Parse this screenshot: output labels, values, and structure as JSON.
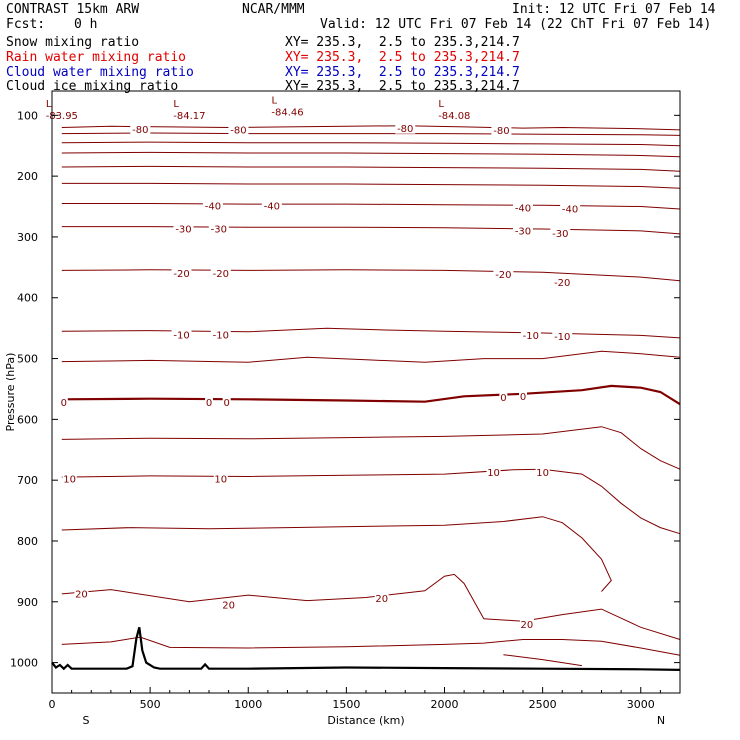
{
  "header": {
    "model": "CONTRAST 15km ARW",
    "org": "NCAR/MMM",
    "init": "Init: 12 UTC Fri 07 Feb 14",
    "fcst_label": "Fcst:",
    "fcst_value": "0 h",
    "valid": "Valid: 12 UTC Fri 07 Feb 14 (22 ChT Fri 07 Feb 14)"
  },
  "fields": [
    {
      "name": "Snow mixing ratio",
      "xy": "XY= 235.3,  2.5 to 235.3,214.7",
      "color": "#000000"
    },
    {
      "name": "Rain water mixing ratio",
      "xy": "XY= 235.3,  2.5 to 235.3,214.7",
      "color": "#e00000"
    },
    {
      "name": "Cloud water mixing ratio",
      "xy": "XY= 235.3,  2.5 to 235.3,214.7",
      "color": "#0000c0"
    },
    {
      "name": "Cloud ice mixing ratio",
      "xy": "XY= 235.3,  2.5 to 235.3,214.7",
      "color": "#000000"
    }
  ],
  "chart_data": {
    "type": "line",
    "xlabel": "Distance (km)",
    "ylabel": "Pressure (hPa)",
    "xlim": [
      0,
      3200
    ],
    "ylim": [
      1050,
      60
    ],
    "x_ticks": [
      0,
      500,
      1000,
      1500,
      2000,
      2500,
      3000
    ],
    "y_ticks": [
      100,
      200,
      300,
      400,
      500,
      600,
      700,
      800,
      900,
      1000
    ],
    "direction_left": "S",
    "direction_right": "N",
    "contour_color": "#800000",
    "ground_color": "#000000",
    "contours": [
      {
        "level": -80,
        "x": [
          50,
          300,
          600,
          900,
          1200,
          1500,
          1800,
          2100,
          2400,
          2600,
          3000,
          3200
        ],
        "p": [
          120,
          118,
          119,
          120,
          119,
          118,
          117,
          119,
          121,
          120,
          122,
          124
        ]
      },
      {
        "level": null,
        "x": [
          50,
          500,
          1000,
          1500,
          2000,
          2500,
          3000,
          3200
        ],
        "p": [
          130,
          129,
          130,
          130,
          130,
          131,
          132,
          133
        ]
      },
      {
        "level": null,
        "x": [
          50,
          500,
          1000,
          1500,
          2000,
          2500,
          3000,
          3200
        ],
        "p": [
          145,
          144,
          145,
          145,
          146,
          147,
          148,
          150
        ]
      },
      {
        "level": null,
        "x": [
          50,
          500,
          1000,
          1500,
          2000,
          2500,
          3000,
          3200
        ],
        "p": [
          162,
          161,
          162,
          162,
          163,
          164,
          166,
          168
        ]
      },
      {
        "level": null,
        "x": [
          50,
          500,
          1000,
          1500,
          2000,
          2500,
          3000,
          3200
        ],
        "p": [
          185,
          184,
          185,
          185,
          186,
          187,
          189,
          192
        ]
      },
      {
        "level": null,
        "x": [
          50,
          500,
          1000,
          1500,
          2000,
          2500,
          3000,
          3200
        ],
        "p": [
          212,
          212,
          213,
          213,
          214,
          215,
          217,
          220
        ]
      },
      {
        "level": -40,
        "x": [
          50,
          500,
          1000,
          1500,
          2000,
          2500,
          3000,
          3200
        ],
        "p": [
          245,
          245,
          246,
          246,
          247,
          248,
          250,
          254
        ]
      },
      {
        "level": -30,
        "x": [
          50,
          500,
          1000,
          1500,
          2000,
          2500,
          3000,
          3200
        ],
        "p": [
          283,
          283,
          284,
          284,
          285,
          287,
          290,
          295
        ]
      },
      {
        "level": -20,
        "x": [
          50,
          500,
          1000,
          1500,
          2000,
          2500,
          3000,
          3200
        ],
        "p": [
          355,
          354,
          355,
          354,
          355,
          358,
          366,
          372
        ]
      },
      {
        "level": -10,
        "x": [
          50,
          500,
          1000,
          1400,
          1700,
          2000,
          2500,
          3000,
          3200
        ],
        "p": [
          455,
          454,
          456,
          450,
          453,
          455,
          458,
          462,
          466
        ]
      },
      {
        "level": null,
        "x": [
          50,
          500,
          1000,
          1300,
          1600,
          1900,
          2200,
          2500,
          2800,
          3000,
          3200
        ],
        "p": [
          505,
          503,
          506,
          498,
          502,
          506,
          500,
          500,
          488,
          492,
          498
        ]
      },
      {
        "level": 0,
        "x": [
          50,
          500,
          1000,
          1500,
          1900,
          2100,
          2400,
          2700,
          2850,
          3000,
          3100,
          3200
        ],
        "p": [
          567,
          566,
          567,
          569,
          571,
          562,
          558,
          552,
          545,
          548,
          555,
          575
        ]
      },
      {
        "level": null,
        "x": [
          50,
          500,
          1000,
          1500,
          2000,
          2500,
          2800,
          2900,
          3000,
          3100,
          3200
        ],
        "p": [
          633,
          631,
          632,
          630,
          628,
          624,
          612,
          622,
          648,
          668,
          682
        ]
      },
      {
        "level": 10,
        "x": [
          50,
          500,
          1000,
          1500,
          2000,
          2350,
          2500,
          2700,
          2800,
          2900,
          3000,
          3100,
          3200
        ],
        "p": [
          695,
          693,
          694,
          692,
          690,
          683,
          682,
          690,
          710,
          738,
          762,
          778,
          788
        ]
      },
      {
        "level": null,
        "x": [
          50,
          400,
          800,
          1200,
          1600,
          2000,
          2300,
          2500,
          2600,
          2700,
          2800,
          2850,
          2800
        ],
        "p": [
          782,
          778,
          780,
          778,
          776,
          774,
          768,
          760,
          770,
          795,
          830,
          865,
          883
        ]
      },
      {
        "level": 20,
        "x": [
          50,
          300,
          700,
          1000,
          1300,
          1600,
          1900,
          2000,
          2050,
          2100,
          2200,
          2400,
          2600,
          2800,
          3000,
          3200
        ],
        "p": [
          887,
          880,
          900,
          889,
          898,
          893,
          882,
          858,
          855,
          870,
          928,
          932,
          921,
          912,
          942,
          962
        ]
      },
      {
        "level": null,
        "x": [
          50,
          300,
          450,
          600,
          1000,
          1500,
          2000,
          2200,
          2400,
          2600,
          2800,
          3000,
          3200
        ],
        "p": [
          970,
          966,
          958,
          975,
          976,
          974,
          970,
          968,
          962,
          962,
          965,
          976,
          988
        ]
      },
      {
        "level": null,
        "x": [
          2300,
          2500,
          2700
        ],
        "p": [
          987,
          995,
          1005
        ]
      }
    ],
    "ground": {
      "x": [
        0,
        20,
        40,
        60,
        80,
        100,
        380,
        410,
        430,
        445,
        460,
        480,
        520,
        550,
        760,
        780,
        800,
        1000,
        1500,
        2000,
        2500,
        3000,
        3200
      ],
      "p": [
        1000,
        1008,
        1004,
        1010,
        1004,
        1010,
        1010,
        1006,
        960,
        942,
        980,
        1000,
        1008,
        1010,
        1010,
        1003,
        1010,
        1010,
        1008,
        1009,
        1010,
        1011,
        1012
      ]
    },
    "lows": [
      {
        "label": "L",
        "value": "-83.95",
        "x": 50,
        "p": 93
      },
      {
        "label": "L",
        "value": "-84.17",
        "x": 700,
        "p": 93
      },
      {
        "label": "L",
        "value": "-84.46",
        "x": 1200,
        "p": 87
      },
      {
        "label": "L",
        "value": "-84.08",
        "x": 2050,
        "p": 93
      }
    ],
    "labels": [
      {
        "text": "-80",
        "x": 450,
        "p": 123
      },
      {
        "text": "-80",
        "x": 950,
        "p": 124
      },
      {
        "text": "-80",
        "x": 1800,
        "p": 122
      },
      {
        "text": "-80",
        "x": 2290,
        "p": 125
      },
      {
        "text": "-40",
        "x": 820,
        "p": 249
      },
      {
        "text": "-40",
        "x": 1120,
        "p": 249
      },
      {
        "text": "-40",
        "x": 2400,
        "p": 252
      },
      {
        "text": "-40",
        "x": 2640,
        "p": 254
      },
      {
        "text": "-30",
        "x": 670,
        "p": 287
      },
      {
        "text": "-30",
        "x": 850,
        "p": 287
      },
      {
        "text": "-30",
        "x": 2400,
        "p": 290
      },
      {
        "text": "-30",
        "x": 2590,
        "p": 294
      },
      {
        "text": "-20",
        "x": 660,
        "p": 360
      },
      {
        "text": "-20",
        "x": 860,
        "p": 360
      },
      {
        "text": "-20",
        "x": 2300,
        "p": 362
      },
      {
        "text": "-20",
        "x": 2600,
        "p": 375
      },
      {
        "text": "-10",
        "x": 660,
        "p": 461
      },
      {
        "text": "-10",
        "x": 860,
        "p": 461
      },
      {
        "text": "-10",
        "x": 2440,
        "p": 462
      },
      {
        "text": "-10",
        "x": 2600,
        "p": 464
      },
      {
        "text": "0",
        "x": 60,
        "p": 572
      },
      {
        "text": "0",
        "x": 800,
        "p": 572
      },
      {
        "text": "0",
        "x": 890,
        "p": 572
      },
      {
        "text": "0",
        "x": 2300,
        "p": 564
      },
      {
        "text": "0",
        "x": 2400,
        "p": 562
      },
      {
        "text": "10",
        "x": 90,
        "p": 698
      },
      {
        "text": "10",
        "x": 860,
        "p": 698
      },
      {
        "text": "10",
        "x": 2250,
        "p": 687
      },
      {
        "text": "10",
        "x": 2500,
        "p": 687
      },
      {
        "text": "20",
        "x": 150,
        "p": 887
      },
      {
        "text": "20",
        "x": 900,
        "p": 905
      },
      {
        "text": "20",
        "x": 1680,
        "p": 895
      },
      {
        "text": "20",
        "x": 2420,
        "p": 937
      }
    ]
  }
}
